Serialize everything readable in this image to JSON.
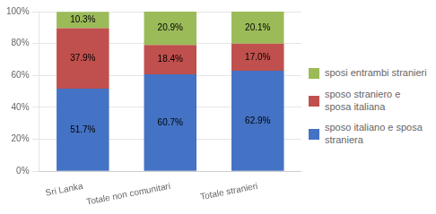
{
  "chart_data": {
    "type": "bar",
    "stacked": true,
    "categories": [
      "Sri Lanka",
      "Totale non comunitari",
      "Totale stranieri"
    ],
    "series": [
      {
        "name": "sposo italiano e sposa\nstraniera",
        "color": "#4472C4",
        "values": [
          51.7,
          60.7,
          62.9
        ],
        "value_labels": [
          "51.7%",
          "60.7%",
          "62.9%"
        ]
      },
      {
        "name": "sposo straniero e\nsposa italiana",
        "color": "#C0504D",
        "values": [
          37.9,
          18.4,
          17.0
        ],
        "value_labels": [
          "37.9%",
          "18.4%",
          "17.0%"
        ]
      },
      {
        "name": "sposi entrambi stranieri",
        "color": "#9BBB59",
        "values": [
          10.3,
          20.9,
          20.1
        ],
        "value_labels": [
          "10.3%",
          "20.9%",
          "20.1%"
        ]
      }
    ],
    "ylim": [
      0,
      100
    ],
    "yticks": [
      {
        "value": 0,
        "label": "0%"
      },
      {
        "value": 20,
        "label": "20%"
      },
      {
        "value": 40,
        "label": "40%"
      },
      {
        "value": 60,
        "label": "60%"
      },
      {
        "value": 80,
        "label": "80%"
      },
      {
        "value": 100,
        "label": "100%"
      }
    ],
    "grid": true,
    "legend": "right",
    "data_labels": true
  }
}
